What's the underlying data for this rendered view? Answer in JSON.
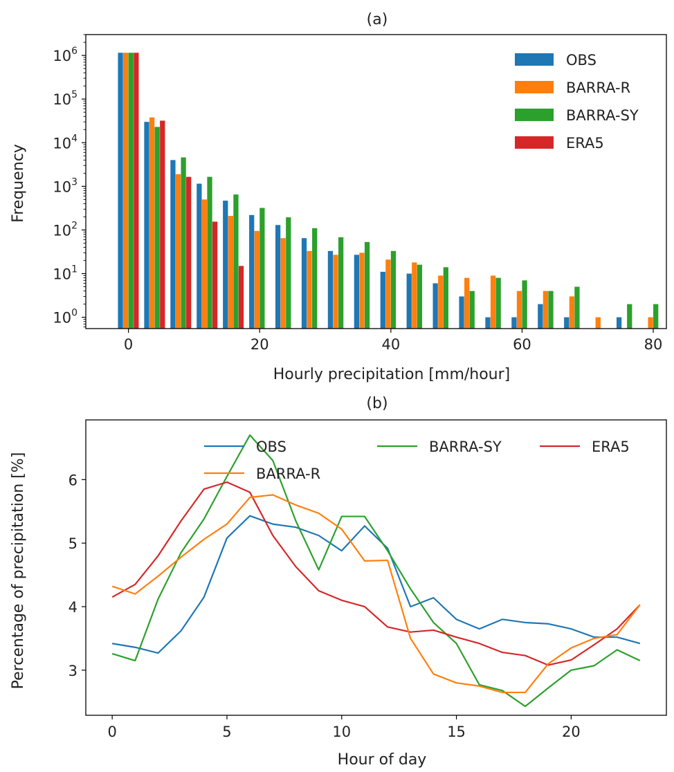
{
  "chart_data": [
    {
      "type": "bar",
      "title": "(a)",
      "xlabel": "Hourly precipitation [mm/hour]",
      "ylabel": "Frequency",
      "yscale": "log",
      "ylim": [
        0.55,
        3000000
      ],
      "xlim": [
        -6.5,
        82
      ],
      "xticks": [
        0,
        20,
        40,
        60,
        80
      ],
      "yticks_exp": [
        0,
        1,
        2,
        3,
        4,
        5,
        6
      ],
      "ytick_base": "10",
      "legend_position": "top-right",
      "categories": [
        0,
        4,
        8,
        12,
        16,
        20,
        24,
        28,
        32,
        36,
        40,
        44,
        48,
        52,
        56,
        60,
        64,
        68,
        72,
        76,
        80
      ],
      "series": [
        {
          "name": "OBS",
          "color": "#1f77b4",
          "values": [
            1150000,
            30000,
            4000,
            1150,
            470,
            220,
            130,
            65,
            33,
            27,
            11,
            10,
            6,
            3,
            1,
            1,
            2,
            1,
            null,
            1,
            null
          ]
        },
        {
          "name": "BARRA-R",
          "color": "#ff7f0e",
          "values": [
            1150000,
            38000,
            1900,
            500,
            210,
            95,
            65,
            33,
            27,
            30,
            21,
            18,
            9,
            8,
            9,
            4,
            4,
            3,
            1,
            null,
            1
          ]
        },
        {
          "name": "BARRA-SY",
          "color": "#2ca02c",
          "values": [
            1150000,
            23000,
            4600,
            1650,
            650,
            320,
            195,
            110,
            68,
            53,
            33,
            16,
            14,
            4,
            8,
            7,
            4,
            5,
            null,
            2,
            2
          ]
        },
        {
          "name": "ERA5",
          "color": "#d62728",
          "values": [
            1150000,
            32000,
            1650,
            155,
            15,
            null,
            null,
            null,
            null,
            null,
            null,
            null,
            null,
            null,
            null,
            null,
            null,
            null,
            null,
            null,
            null
          ]
        }
      ]
    },
    {
      "type": "line",
      "title": "(b)",
      "xlabel": "Hour of day",
      "ylabel": "Percentage of precipitation [%]",
      "xlim": [
        -1.15,
        24.15
      ],
      "ylim": [
        2.29,
        6.94
      ],
      "xticks": [
        0,
        5,
        10,
        15,
        20
      ],
      "yticks": [
        3,
        4,
        5,
        6
      ],
      "legend_position": "top",
      "x": [
        0,
        1,
        2,
        3,
        4,
        5,
        6,
        7,
        8,
        9,
        10,
        11,
        12,
        13,
        14,
        15,
        16,
        17,
        18,
        19,
        20,
        21,
        22,
        23
      ],
      "series": [
        {
          "name": "OBS",
          "color": "#1f77b4",
          "values": [
            3.42,
            3.36,
            3.27,
            3.62,
            4.15,
            5.08,
            5.43,
            5.3,
            5.25,
            5.12,
            4.88,
            5.27,
            4.92,
            4.0,
            4.14,
            3.8,
            3.65,
            3.8,
            3.75,
            3.73,
            3.65,
            3.52,
            3.52,
            3.42
          ]
        },
        {
          "name": "BARRA-SY",
          "color": "#2ca02c",
          "values": [
            3.26,
            3.15,
            4.12,
            4.85,
            5.38,
            6.05,
            6.7,
            6.3,
            5.35,
            4.58,
            5.42,
            5.42,
            4.88,
            4.28,
            3.75,
            3.42,
            2.77,
            2.68,
            2.43,
            2.72,
            3.0,
            3.07,
            3.32,
            3.15
          ]
        },
        {
          "name": "ERA5",
          "color": "#d62728",
          "values": [
            4.15,
            4.35,
            4.8,
            5.35,
            5.85,
            5.96,
            5.8,
            5.12,
            4.63,
            4.25,
            4.1,
            4.0,
            3.68,
            3.6,
            3.63,
            3.52,
            3.42,
            3.28,
            3.23,
            3.08,
            3.16,
            3.4,
            3.65,
            4.03
          ]
        },
        {
          "name": "BARRA-R",
          "color": "#ff7f0e",
          "values": [
            4.32,
            4.2,
            4.48,
            4.78,
            5.06,
            5.3,
            5.72,
            5.76,
            5.6,
            5.47,
            5.22,
            4.72,
            4.73,
            3.5,
            2.94,
            2.8,
            2.75,
            2.65,
            2.65,
            3.1,
            3.35,
            3.5,
            3.56,
            4.03
          ]
        }
      ]
    }
  ]
}
